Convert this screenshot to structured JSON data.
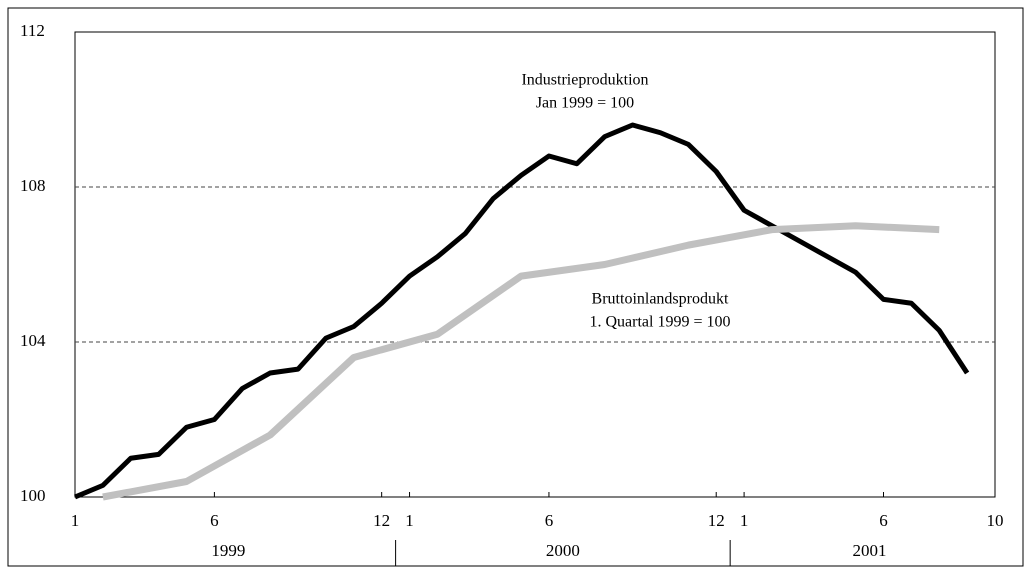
{
  "chart_data": {
    "type": "line",
    "xlim": [
      0,
      33
    ],
    "xticks": [
      {
        "value": 0,
        "label": "1"
      },
      {
        "value": 5,
        "label": "6"
      },
      {
        "value": 11,
        "label": "12"
      },
      {
        "value": 12,
        "label": "1"
      },
      {
        "value": 17,
        "label": "6"
      },
      {
        "value": 23,
        "label": "12"
      },
      {
        "value": 24,
        "label": "1"
      },
      {
        "value": 29,
        "label": "6"
      },
      {
        "value": 33,
        "label": "10"
      }
    ],
    "x_groups": [
      "1999",
      "2000",
      "2001"
    ],
    "ylim": [
      100,
      112
    ],
    "yticks": [
      100,
      104,
      108,
      112
    ],
    "grid": true,
    "series": [
      {
        "name": "Industrieproduktion",
        "subtitle": "Jan 1999 = 100",
        "color": "#000000",
        "x": [
          0,
          1,
          2,
          3,
          4,
          5,
          6,
          7,
          8,
          9,
          10,
          11,
          12,
          13,
          14,
          15,
          16,
          17,
          18,
          19,
          20,
          21,
          22,
          23,
          24,
          25,
          26,
          27,
          28,
          29,
          30,
          31,
          32
        ],
        "values": [
          100.0,
          100.3,
          101.0,
          101.1,
          101.8,
          102.0,
          102.8,
          103.2,
          103.3,
          104.1,
          104.4,
          105.0,
          105.7,
          106.2,
          106.8,
          107.7,
          108.3,
          108.8,
          108.6,
          109.3,
          109.6,
          109.4,
          109.1,
          108.4,
          107.4,
          107.0,
          106.6,
          106.2,
          105.8,
          105.1,
          105.0,
          104.3,
          103.2
        ]
      },
      {
        "name": "Bruttoinlandsprodukt",
        "subtitle": "1. Quartal 1999 = 100",
        "color": "#c0c0c0",
        "x": [
          1,
          4,
          7,
          10,
          13,
          16,
          19,
          22,
          25,
          28,
          31
        ],
        "values": [
          100.0,
          100.4,
          101.6,
          103.6,
          104.2,
          105.7,
          106.0,
          106.5,
          106.9,
          107.0,
          106.9
        ]
      }
    ]
  }
}
